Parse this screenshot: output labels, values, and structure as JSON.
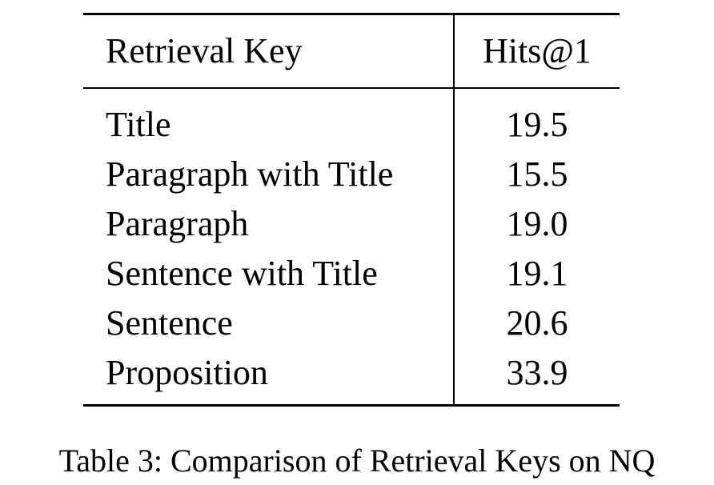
{
  "table": {
    "headers": [
      "Retrieval Key",
      "Hits@1"
    ],
    "rows": [
      {
        "key": "Title",
        "value": "19.5"
      },
      {
        "key": "Paragraph with Title",
        "value": "15.5"
      },
      {
        "key": "Paragraph",
        "value": "19.0"
      },
      {
        "key": "Sentence with Title",
        "value": "19.1"
      },
      {
        "key": "Sentence",
        "value": "20.6"
      },
      {
        "key": "Proposition",
        "value": "33.9"
      }
    ]
  },
  "caption": "Table 3: Comparison of Retrieval Keys on NQ"
}
